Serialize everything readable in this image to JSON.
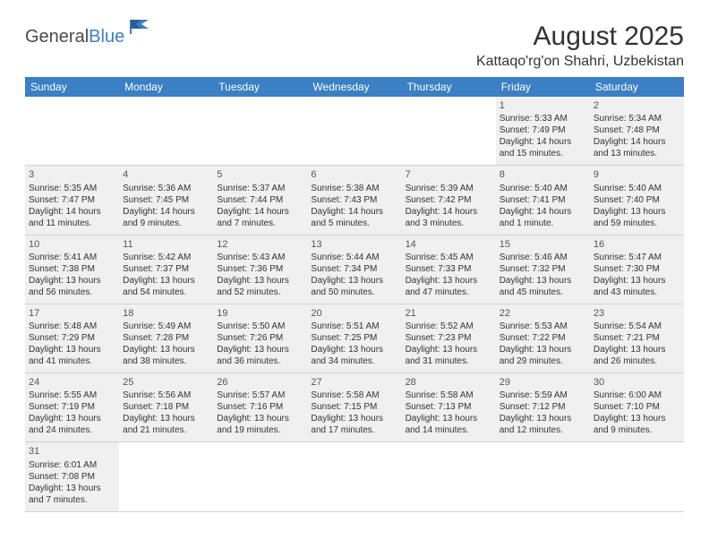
{
  "logo": {
    "dark": "General",
    "blue": "Blue"
  },
  "title": "August 2025",
  "location": "Kattaqo'rg'on Shahri, Uzbekistan",
  "colors": {
    "header_bg": "#3b7fc4",
    "header_text": "#ffffff",
    "cell_fill": "#f0f0f0",
    "text": "#333333",
    "logo_dark": "#4a4a4a",
    "logo_blue": "#3b7fc4"
  },
  "dayNames": [
    "Sunday",
    "Monday",
    "Tuesday",
    "Wednesday",
    "Thursday",
    "Friday",
    "Saturday"
  ],
  "weeks": [
    [
      null,
      null,
      null,
      null,
      null,
      {
        "n": "1",
        "sr": "Sunrise: 5:33 AM",
        "ss": "Sunset: 7:49 PM",
        "d1": "Daylight: 14 hours",
        "d2": "and 15 minutes."
      },
      {
        "n": "2",
        "sr": "Sunrise: 5:34 AM",
        "ss": "Sunset: 7:48 PM",
        "d1": "Daylight: 14 hours",
        "d2": "and 13 minutes."
      }
    ],
    [
      {
        "n": "3",
        "sr": "Sunrise: 5:35 AM",
        "ss": "Sunset: 7:47 PM",
        "d1": "Daylight: 14 hours",
        "d2": "and 11 minutes."
      },
      {
        "n": "4",
        "sr": "Sunrise: 5:36 AM",
        "ss": "Sunset: 7:45 PM",
        "d1": "Daylight: 14 hours",
        "d2": "and 9 minutes."
      },
      {
        "n": "5",
        "sr": "Sunrise: 5:37 AM",
        "ss": "Sunset: 7:44 PM",
        "d1": "Daylight: 14 hours",
        "d2": "and 7 minutes."
      },
      {
        "n": "6",
        "sr": "Sunrise: 5:38 AM",
        "ss": "Sunset: 7:43 PM",
        "d1": "Daylight: 14 hours",
        "d2": "and 5 minutes."
      },
      {
        "n": "7",
        "sr": "Sunrise: 5:39 AM",
        "ss": "Sunset: 7:42 PM",
        "d1": "Daylight: 14 hours",
        "d2": "and 3 minutes."
      },
      {
        "n": "8",
        "sr": "Sunrise: 5:40 AM",
        "ss": "Sunset: 7:41 PM",
        "d1": "Daylight: 14 hours",
        "d2": "and 1 minute."
      },
      {
        "n": "9",
        "sr": "Sunrise: 5:40 AM",
        "ss": "Sunset: 7:40 PM",
        "d1": "Daylight: 13 hours",
        "d2": "and 59 minutes."
      }
    ],
    [
      {
        "n": "10",
        "sr": "Sunrise: 5:41 AM",
        "ss": "Sunset: 7:38 PM",
        "d1": "Daylight: 13 hours",
        "d2": "and 56 minutes."
      },
      {
        "n": "11",
        "sr": "Sunrise: 5:42 AM",
        "ss": "Sunset: 7:37 PM",
        "d1": "Daylight: 13 hours",
        "d2": "and 54 minutes."
      },
      {
        "n": "12",
        "sr": "Sunrise: 5:43 AM",
        "ss": "Sunset: 7:36 PM",
        "d1": "Daylight: 13 hours",
        "d2": "and 52 minutes."
      },
      {
        "n": "13",
        "sr": "Sunrise: 5:44 AM",
        "ss": "Sunset: 7:34 PM",
        "d1": "Daylight: 13 hours",
        "d2": "and 50 minutes."
      },
      {
        "n": "14",
        "sr": "Sunrise: 5:45 AM",
        "ss": "Sunset: 7:33 PM",
        "d1": "Daylight: 13 hours",
        "d2": "and 47 minutes."
      },
      {
        "n": "15",
        "sr": "Sunrise: 5:46 AM",
        "ss": "Sunset: 7:32 PM",
        "d1": "Daylight: 13 hours",
        "d2": "and 45 minutes."
      },
      {
        "n": "16",
        "sr": "Sunrise: 5:47 AM",
        "ss": "Sunset: 7:30 PM",
        "d1": "Daylight: 13 hours",
        "d2": "and 43 minutes."
      }
    ],
    [
      {
        "n": "17",
        "sr": "Sunrise: 5:48 AM",
        "ss": "Sunset: 7:29 PM",
        "d1": "Daylight: 13 hours",
        "d2": "and 41 minutes."
      },
      {
        "n": "18",
        "sr": "Sunrise: 5:49 AM",
        "ss": "Sunset: 7:28 PM",
        "d1": "Daylight: 13 hours",
        "d2": "and 38 minutes."
      },
      {
        "n": "19",
        "sr": "Sunrise: 5:50 AM",
        "ss": "Sunset: 7:26 PM",
        "d1": "Daylight: 13 hours",
        "d2": "and 36 minutes."
      },
      {
        "n": "20",
        "sr": "Sunrise: 5:51 AM",
        "ss": "Sunset: 7:25 PM",
        "d1": "Daylight: 13 hours",
        "d2": "and 34 minutes."
      },
      {
        "n": "21",
        "sr": "Sunrise: 5:52 AM",
        "ss": "Sunset: 7:23 PM",
        "d1": "Daylight: 13 hours",
        "d2": "and 31 minutes."
      },
      {
        "n": "22",
        "sr": "Sunrise: 5:53 AM",
        "ss": "Sunset: 7:22 PM",
        "d1": "Daylight: 13 hours",
        "d2": "and 29 minutes."
      },
      {
        "n": "23",
        "sr": "Sunrise: 5:54 AM",
        "ss": "Sunset: 7:21 PM",
        "d1": "Daylight: 13 hours",
        "d2": "and 26 minutes."
      }
    ],
    [
      {
        "n": "24",
        "sr": "Sunrise: 5:55 AM",
        "ss": "Sunset: 7:19 PM",
        "d1": "Daylight: 13 hours",
        "d2": "and 24 minutes."
      },
      {
        "n": "25",
        "sr": "Sunrise: 5:56 AM",
        "ss": "Sunset: 7:18 PM",
        "d1": "Daylight: 13 hours",
        "d2": "and 21 minutes."
      },
      {
        "n": "26",
        "sr": "Sunrise: 5:57 AM",
        "ss": "Sunset: 7:16 PM",
        "d1": "Daylight: 13 hours",
        "d2": "and 19 minutes."
      },
      {
        "n": "27",
        "sr": "Sunrise: 5:58 AM",
        "ss": "Sunset: 7:15 PM",
        "d1": "Daylight: 13 hours",
        "d2": "and 17 minutes."
      },
      {
        "n": "28",
        "sr": "Sunrise: 5:58 AM",
        "ss": "Sunset: 7:13 PM",
        "d1": "Daylight: 13 hours",
        "d2": "and 14 minutes."
      },
      {
        "n": "29",
        "sr": "Sunrise: 5:59 AM",
        "ss": "Sunset: 7:12 PM",
        "d1": "Daylight: 13 hours",
        "d2": "and 12 minutes."
      },
      {
        "n": "30",
        "sr": "Sunrise: 6:00 AM",
        "ss": "Sunset: 7:10 PM",
        "d1": "Daylight: 13 hours",
        "d2": "and 9 minutes."
      }
    ],
    [
      {
        "n": "31",
        "sr": "Sunrise: 6:01 AM",
        "ss": "Sunset: 7:08 PM",
        "d1": "Daylight: 13 hours",
        "d2": "and 7 minutes."
      },
      null,
      null,
      null,
      null,
      null,
      null
    ]
  ]
}
